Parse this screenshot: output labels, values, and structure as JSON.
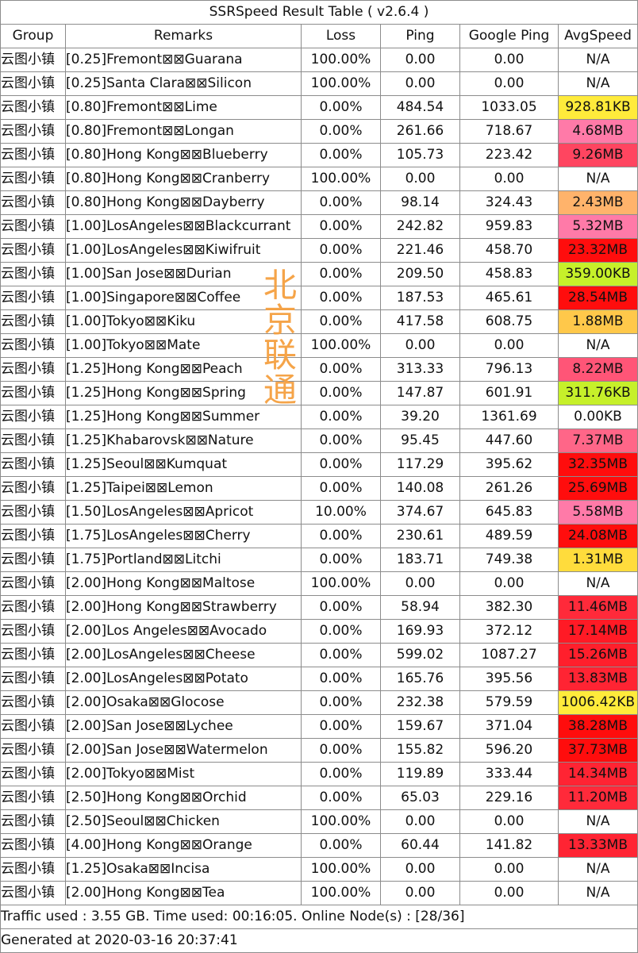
{
  "title": "SSRSpeed Result Table ( v2.6.4 )",
  "columns": [
    "Group",
    "Remarks",
    "Loss",
    "Ping",
    "Google Ping",
    "AvgSpeed"
  ],
  "rows": [
    {
      "group": "云图小镇",
      "remarks": "[0.25]Fremont⊠⊠Guarana",
      "loss": "100.00%",
      "ping": "0.00",
      "gping": "0.00",
      "speed": "N/A",
      "color": "#ffffff"
    },
    {
      "group": "云图小镇",
      "remarks": "[0.25]Santa Clara⊠⊠Silicon",
      "loss": "100.00%",
      "ping": "0.00",
      "gping": "0.00",
      "speed": "N/A",
      "color": "#ffffff"
    },
    {
      "group": "云图小镇",
      "remarks": "[0.80]Fremont⊠⊠Lime",
      "loss": "0.00%",
      "ping": "484.54",
      "gping": "1033.05",
      "speed": "928.81KB",
      "color": "#ffeb3b"
    },
    {
      "group": "云图小镇",
      "remarks": "[0.80]Fremont⊠⊠Longan",
      "loss": "0.00%",
      "ping": "261.66",
      "gping": "718.67",
      "speed": "4.68MB",
      "color": "#ff7aa8"
    },
    {
      "group": "云图小镇",
      "remarks": "[0.80]Hong Kong⊠⊠Blueberry",
      "loss": "0.00%",
      "ping": "105.73",
      "gping": "223.42",
      "speed": "9.26MB",
      "color": "#ff4560"
    },
    {
      "group": "云图小镇",
      "remarks": "[0.80]Hong Kong⊠⊠Cranberry",
      "loss": "100.00%",
      "ping": "0.00",
      "gping": "0.00",
      "speed": "N/A",
      "color": "#ffffff"
    },
    {
      "group": "云图小镇",
      "remarks": "[0.80]Hong Kong⊠⊠Dayberry",
      "loss": "0.00%",
      "ping": "98.14",
      "gping": "324.43",
      "speed": "2.43MB",
      "color": "#ffb36b"
    },
    {
      "group": "云图小镇",
      "remarks": "[1.00]LosAngeles⊠⊠Blackcurrant",
      "loss": "0.00%",
      "ping": "242.82",
      "gping": "959.83",
      "speed": "5.32MB",
      "color": "#ff7aa8"
    },
    {
      "group": "云图小镇",
      "remarks": "[1.00]LosAngeles⊠⊠Kiwifruit",
      "loss": "0.00%",
      "ping": "221.46",
      "gping": "458.70",
      "speed": "23.32MB",
      "color": "#ff0d0d"
    },
    {
      "group": "云图小镇",
      "remarks": "[1.00]San Jose⊠⊠Durian",
      "loss": "0.00%",
      "ping": "209.50",
      "gping": "458.83",
      "speed": "359.00KB",
      "color": "#c6f02a"
    },
    {
      "group": "云图小镇",
      "remarks": "[1.00]Singapore⊠⊠Coffee",
      "loss": "0.00%",
      "ping": "187.53",
      "gping": "465.61",
      "speed": "28.54MB",
      "color": "#ff0d0d"
    },
    {
      "group": "云图小镇",
      "remarks": "[1.00]Tokyo⊠⊠Kiku",
      "loss": "0.00%",
      "ping": "417.58",
      "gping": "608.75",
      "speed": "1.88MB",
      "color": "#ffc84a"
    },
    {
      "group": "云图小镇",
      "remarks": "[1.00]Tokyo⊠⊠Mate",
      "loss": "100.00%",
      "ping": "0.00",
      "gping": "0.00",
      "speed": "N/A",
      "color": "#ffffff"
    },
    {
      "group": "云图小镇",
      "remarks": "[1.25]Hong Kong⊠⊠Peach",
      "loss": "0.00%",
      "ping": "313.33",
      "gping": "796.13",
      "speed": "8.22MB",
      "color": "#ff5577"
    },
    {
      "group": "云图小镇",
      "remarks": "[1.25]Hong Kong⊠⊠Spring",
      "loss": "0.00%",
      "ping": "147.87",
      "gping": "601.91",
      "speed": "311.76KB",
      "color": "#c6f02a"
    },
    {
      "group": "云图小镇",
      "remarks": "[1.25]Hong Kong⊠⊠Summer",
      "loss": "0.00%",
      "ping": "39.20",
      "gping": "1361.69",
      "speed": "0.00KB",
      "color": "#ffffff"
    },
    {
      "group": "云图小镇",
      "remarks": "[1.25]Khabarovsk⊠⊠Nature",
      "loss": "0.00%",
      "ping": "95.45",
      "gping": "447.60",
      "speed": "7.37MB",
      "color": "#ff6688"
    },
    {
      "group": "云图小镇",
      "remarks": "[1.25]Seoul⊠⊠Kumquat",
      "loss": "0.00%",
      "ping": "117.29",
      "gping": "395.62",
      "speed": "32.35MB",
      "color": "#ff0d0d"
    },
    {
      "group": "云图小镇",
      "remarks": "[1.25]Taipei⊠⊠Lemon",
      "loss": "0.00%",
      "ping": "140.08",
      "gping": "261.26",
      "speed": "25.69MB",
      "color": "#ff0d0d"
    },
    {
      "group": "云图小镇",
      "remarks": "[1.50]LosAngeles⊠⊠Apricot",
      "loss": "10.00%",
      "ping": "374.67",
      "gping": "645.83",
      "speed": "5.58MB",
      "color": "#ff7aa8"
    },
    {
      "group": "云图小镇",
      "remarks": "[1.75]LosAngeles⊠⊠Cherry",
      "loss": "0.00%",
      "ping": "230.61",
      "gping": "489.59",
      "speed": "24.08MB",
      "color": "#ff0d0d"
    },
    {
      "group": "云图小镇",
      "remarks": "[1.75]Portland⊠⊠Litchi",
      "loss": "0.00%",
      "ping": "183.71",
      "gping": "749.38",
      "speed": "1.31MB",
      "color": "#ffdc3c"
    },
    {
      "group": "云图小镇",
      "remarks": "[2.00]Hong Kong⊠⊠Maltose",
      "loss": "100.00%",
      "ping": "0.00",
      "gping": "0.00",
      "speed": "N/A",
      "color": "#ffffff"
    },
    {
      "group": "云图小镇",
      "remarks": "[2.00]Hong Kong⊠⊠Strawberry",
      "loss": "0.00%",
      "ping": "58.94",
      "gping": "382.30",
      "speed": "11.46MB",
      "color": "#ff2a3a"
    },
    {
      "group": "云图小镇",
      "remarks": "[2.00]Los Angeles⊠⊠Avocado",
      "loss": "0.00%",
      "ping": "169.93",
      "gping": "372.12",
      "speed": "17.14MB",
      "color": "#ff1a25"
    },
    {
      "group": "云图小镇",
      "remarks": "[2.00]LosAngeles⊠⊠Cheese",
      "loss": "0.00%",
      "ping": "599.02",
      "gping": "1087.27",
      "speed": "15.26MB",
      "color": "#ff1f2c"
    },
    {
      "group": "云图小镇",
      "remarks": "[2.00]LosAngeles⊠⊠Potato",
      "loss": "0.00%",
      "ping": "165.76",
      "gping": "395.56",
      "speed": "13.83MB",
      "color": "#ff2433"
    },
    {
      "group": "云图小镇",
      "remarks": "[2.00]Osaka⊠⊠Glocose",
      "loss": "0.00%",
      "ping": "232.38",
      "gping": "579.59",
      "speed": "1006.42KB",
      "color": "#ffeb3b"
    },
    {
      "group": "云图小镇",
      "remarks": "[2.00]San Jose⊠⊠Lychee",
      "loss": "0.00%",
      "ping": "159.67",
      "gping": "371.04",
      "speed": "38.28MB",
      "color": "#ff0d0d"
    },
    {
      "group": "云图小镇",
      "remarks": "[2.00]San Jose⊠⊠Watermelon",
      "loss": "0.00%",
      "ping": "155.82",
      "gping": "596.20",
      "speed": "37.73MB",
      "color": "#ff0d0d"
    },
    {
      "group": "云图小镇",
      "remarks": "[2.00]Tokyo⊠⊠Mist",
      "loss": "0.00%",
      "ping": "119.89",
      "gping": "333.44",
      "speed": "14.34MB",
      "color": "#ff2433"
    },
    {
      "group": "云图小镇",
      "remarks": "[2.50]Hong Kong⊠⊠Orchid",
      "loss": "0.00%",
      "ping": "65.03",
      "gping": "229.16",
      "speed": "11.20MB",
      "color": "#ff2a3a"
    },
    {
      "group": "云图小镇",
      "remarks": "[2.50]Seoul⊠⊠Chicken",
      "loss": "100.00%",
      "ping": "0.00",
      "gping": "0.00",
      "speed": "N/A",
      "color": "#ffffff"
    },
    {
      "group": "云图小镇",
      "remarks": "[4.00]Hong Kong⊠⊠Orange",
      "loss": "0.00%",
      "ping": "60.44",
      "gping": "141.82",
      "speed": "13.33MB",
      "color": "#ff2433"
    },
    {
      "group": "云图小镇",
      "remarks": "[1.25]Osaka⊠⊠Incisa",
      "loss": "100.00%",
      "ping": "0.00",
      "gping": "0.00",
      "speed": "N/A",
      "color": "#ffffff"
    },
    {
      "group": "云图小镇",
      "remarks": "[2.00]Hong Kong⊠⊠Tea",
      "loss": "100.00%",
      "ping": "0.00",
      "gping": "0.00",
      "speed": "N/A",
      "color": "#ffffff"
    }
  ],
  "footer": {
    "traffic": "Traffic used : 3.55 GB. Time used: 00:16:05. Online Node(s) : [28/36]",
    "generated": "Generated at 2020-03-16 20:37:41"
  },
  "watermark": {
    "chars": [
      "北",
      "京",
      "联",
      "通"
    ]
  }
}
